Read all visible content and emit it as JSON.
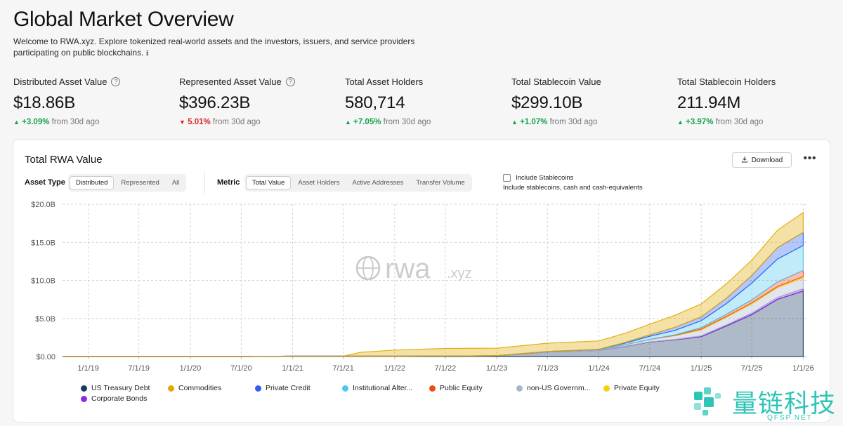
{
  "page": {
    "title": "Global Market Overview",
    "intro": "Welcome to RWA.xyz. Explore tokenized real-world assets and the investors, issuers, and service providers participating on public blockchains."
  },
  "stats": [
    {
      "label": "Distributed Asset Value",
      "value": "$18.86B",
      "change": "+3.09%",
      "direction": "up",
      "suffix": "from 30d ago",
      "help": true
    },
    {
      "label": "Represented Asset Value",
      "value": "$396.23B",
      "change": "5.01%",
      "direction": "down",
      "suffix": "from 30d ago",
      "help": true
    },
    {
      "label": "Total Asset Holders",
      "value": "580,714",
      "change": "+7.05%",
      "direction": "up",
      "suffix": "from 30d ago",
      "help": false
    },
    {
      "label": "Total Stablecoin Value",
      "value": "$299.10B",
      "change": "+1.07%",
      "direction": "up",
      "suffix": "from 30d ago",
      "help": false
    },
    {
      "label": "Total Stablecoin Holders",
      "value": "211.94M",
      "change": "+3.97%",
      "direction": "up",
      "suffix": "from 30d ago",
      "help": false
    }
  ],
  "card": {
    "title": "Total RWA Value",
    "download_label": "Download",
    "more_label": "•••",
    "asset_type_label": "Asset Type",
    "asset_type_options": [
      "Distributed",
      "Represented",
      "All"
    ],
    "asset_type_selected": "Distributed",
    "metric_label": "Metric",
    "metric_options": [
      "Total Value",
      "Asset Holders",
      "Active Addresses",
      "Transfer Volume"
    ],
    "metric_selected": "Total Value",
    "stablecoin_checkbox_label": "Include Stablecoins",
    "stablecoin_checkbox_checked": false,
    "stablecoin_sub": "Include stablecoins, cash and cash-equivalents",
    "watermark": "rwa",
    "watermark_suffix": ".xyz"
  },
  "colors": {
    "US Treasury Debt": "#1b3a63",
    "Commodities": "#e0a800",
    "Private Credit": "#2f5ff0",
    "Institutional Alternative Funds": "#4fc7ef",
    "Public Equity": "#f04a1a",
    "non-US Government Debt": "#a9b5cf",
    "Private Equity": "#f5d20a",
    "Corporate Bonds": "#8a2be2",
    "up": "#16a34a",
    "down": "#dc2626"
  },
  "chart_data": {
    "type": "area",
    "stacked": true,
    "title": "Total RWA Value",
    "ylabel": "",
    "ylim": [
      0,
      20
    ],
    "y_unit": "B",
    "yticks": [
      "$0.00",
      "$5.0B",
      "$10.0B",
      "$15.0B",
      "$20.0B"
    ],
    "xticks": [
      "1/1/19",
      "7/1/19",
      "1/1/20",
      "7/1/20",
      "1/1/21",
      "7/1/21",
      "1/1/22",
      "7/1/22",
      "1/1/23",
      "7/1/23",
      "1/1/24",
      "7/1/24",
      "1/1/25",
      "7/1/25",
      "1/1/26"
    ],
    "grid": true,
    "legend_position": "bottom",
    "x": [
      "2018-10-01",
      "2019-01-01",
      "2019-07-01",
      "2020-01-01",
      "2020-07-01",
      "2021-01-01",
      "2021-07-01",
      "2021-09-01",
      "2022-01-01",
      "2022-07-01",
      "2023-01-01",
      "2023-07-01",
      "2024-01-01",
      "2024-04-01",
      "2024-07-01",
      "2024-10-01",
      "2025-01-01",
      "2025-04-01",
      "2025-07-01",
      "2025-10-01",
      "2026-01-01"
    ],
    "series": [
      {
        "name": "US Treasury Debt",
        "values": [
          0,
          0,
          0,
          0,
          0,
          0.05,
          0.05,
          0.05,
          0.05,
          0.06,
          0.1,
          0.6,
          0.8,
          1.3,
          1.9,
          2.2,
          2.6,
          4.0,
          5.5,
          7.5,
          8.6
        ]
      },
      {
        "name": "Corporate Bonds",
        "values": [
          0,
          0,
          0,
          0,
          0,
          0,
          0,
          0,
          0,
          0,
          0,
          0,
          0,
          0.02,
          0.03,
          0.05,
          0.1,
          0.15,
          0.2,
          0.25,
          0.3
        ]
      },
      {
        "name": "non-US Government Debt",
        "values": [
          0,
          0,
          0,
          0,
          0,
          0,
          0,
          0,
          0,
          0,
          0,
          0.05,
          0.1,
          0.2,
          0.3,
          0.5,
          0.8,
          1.0,
          1.2,
          1.3,
          1.4
        ]
      },
      {
        "name": "Private Equity",
        "values": [
          0,
          0,
          0,
          0,
          0,
          0,
          0,
          0,
          0,
          0,
          0,
          0,
          0,
          0,
          0.02,
          0.05,
          0.1,
          0.1,
          0.15,
          0.15,
          0.2
        ]
      },
      {
        "name": "Public Equity",
        "values": [
          0,
          0,
          0,
          0,
          0,
          0,
          0,
          0,
          0,
          0,
          0,
          0,
          0,
          0,
          0,
          0.05,
          0.2,
          0.3,
          0.4,
          0.6,
          0.8
        ]
      },
      {
        "name": "Institutional Alternative Funds",
        "values": [
          0,
          0,
          0,
          0,
          0,
          0,
          0,
          0,
          0,
          0,
          0,
          0,
          0.05,
          0.2,
          0.4,
          0.6,
          0.9,
          1.4,
          2.2,
          3.0,
          3.3
        ]
      },
      {
        "name": "Private Credit",
        "values": [
          0,
          0,
          0,
          0,
          0,
          0,
          0,
          0,
          0,
          0,
          0,
          0,
          0,
          0.1,
          0.2,
          0.4,
          0.5,
          0.7,
          1.0,
          1.5,
          1.7
        ]
      },
      {
        "name": "Commodities",
        "values": [
          0,
          0,
          0,
          0,
          0,
          0,
          0,
          0.5,
          0.8,
          1.0,
          1.0,
          1.1,
          1.1,
          1.2,
          1.4,
          1.6,
          1.7,
          1.9,
          2.0,
          2.3,
          2.6
        ]
      }
    ]
  },
  "legend": [
    {
      "name": "US Treasury Debt",
      "label": "US Treasury Debt"
    },
    {
      "name": "Commodities",
      "label": "Commodities"
    },
    {
      "name": "Private Credit",
      "label": "Private Credit"
    },
    {
      "name": "Institutional Alternative Funds",
      "label": "Institutional Alter..."
    },
    {
      "name": "Public Equity",
      "label": "Public Equity"
    },
    {
      "name": "non-US Government Debt",
      "label": "non-US Governm..."
    },
    {
      "name": "Private Equity",
      "label": "Private Equity"
    },
    {
      "name": "Corporate Bonds",
      "label": "Corporate Bonds"
    }
  ],
  "badge": {
    "text": "量链科技",
    "sub": "QFSP.NET"
  }
}
